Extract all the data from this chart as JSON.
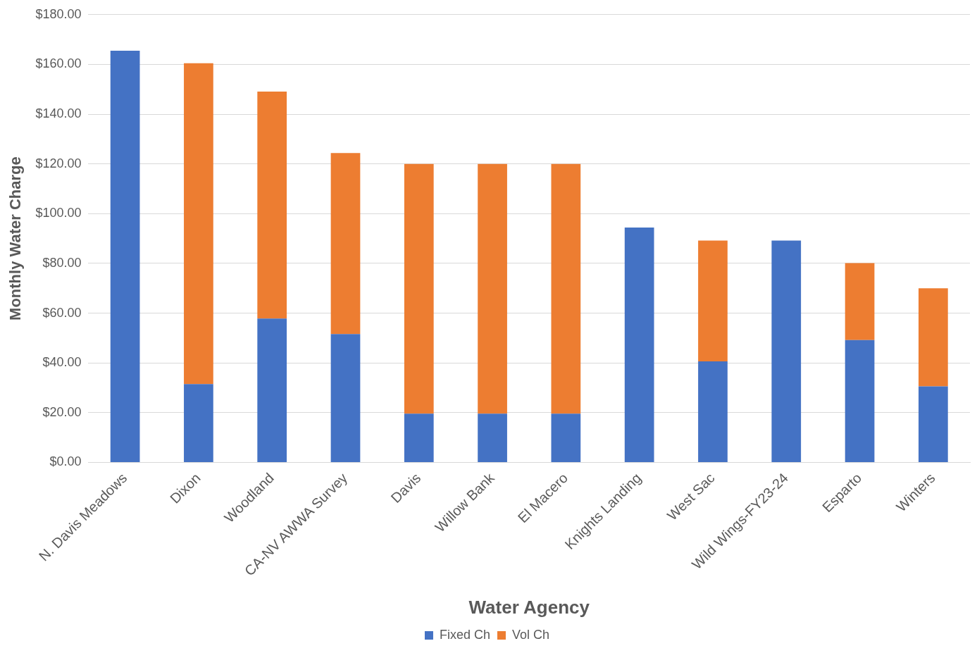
{
  "chart_data": {
    "type": "bar",
    "stacked": true,
    "xlabel": "Water Agency",
    "ylabel": "Monthly Water Charge",
    "categories": [
      "N. Davis Meadows",
      "Dixon",
      "Woodland",
      "CA-NV AWWA Survey",
      "Davis",
      "Willow Bank",
      "El Macero",
      "Knights Landing",
      "West Sac",
      "Wild Wings-FY23-24",
      "Esparto",
      "Winters"
    ],
    "series": [
      {
        "name": "Fixed Ch",
        "color": "#4472c4",
        "values": [
          165.5,
          31.5,
          57.8,
          51.6,
          19.6,
          19.6,
          19.6,
          94.4,
          40.6,
          89.2,
          49.2,
          30.6
        ]
      },
      {
        "name": "Vol Ch",
        "color": "#ed7d31",
        "values": [
          null,
          129,
          91.3,
          72.8,
          100.4,
          100.4,
          100.4,
          null,
          48.6,
          null,
          30.9,
          39.4
        ]
      }
    ],
    "ylim": [
      0,
      180
    ],
    "yticks": [
      {
        "value": 0,
        "label": "$0.00"
      },
      {
        "value": 20,
        "label": "$20.00"
      },
      {
        "value": 40,
        "label": "$40.00"
      },
      {
        "value": 60,
        "label": "$60.00"
      },
      {
        "value": 80,
        "label": "$80.00"
      },
      {
        "value": 100,
        "label": "$100.00"
      },
      {
        "value": 120,
        "label": "$120.00"
      },
      {
        "value": 140,
        "label": "$140.00"
      },
      {
        "value": 160,
        "label": "$160.00"
      },
      {
        "value": 180,
        "label": "$180.00"
      }
    ],
    "grid": "y",
    "legend": "bottom"
  }
}
